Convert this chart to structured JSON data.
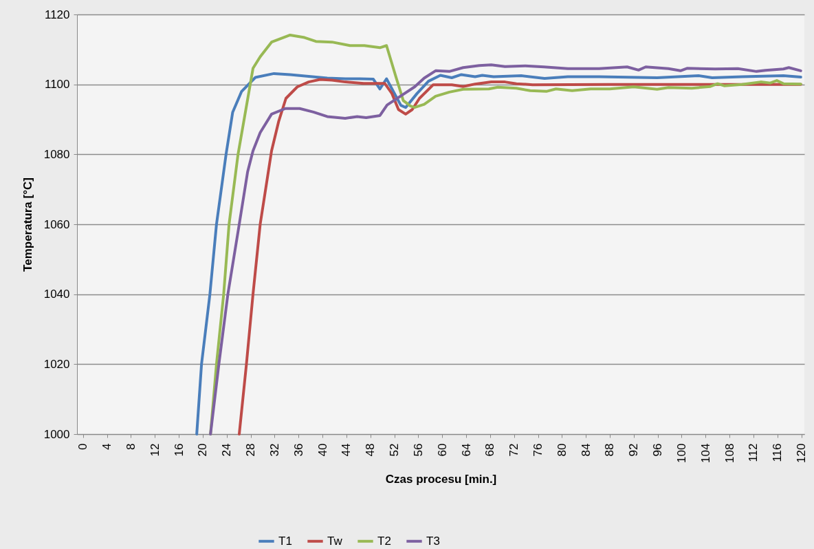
{
  "chart_data": {
    "type": "line",
    "xlabel": "Czas procesu [min.]",
    "ylabel": "Temperatura  [°C]",
    "xlim": [
      -1,
      120.5
    ],
    "ylim": [
      1000,
      1120
    ],
    "xticks": [
      0,
      4,
      8,
      12,
      16,
      20,
      24,
      28,
      32,
      36,
      40,
      44,
      48,
      52,
      56,
      60,
      64,
      68,
      72,
      76,
      80,
      84,
      88,
      92,
      96,
      100,
      104,
      108,
      112,
      116,
      120
    ],
    "yticks": [
      1000,
      1020,
      1040,
      1060,
      1080,
      1100,
      1120
    ],
    "grid": "y",
    "legend": "bottom",
    "marker": "none",
    "line_style": "solid",
    "series": [
      {
        "name": "T1",
        "color": "#4a7ebb",
        "x": [
          19,
          19.8,
          21.2,
          22.3,
          23.9,
          25,
          26.5,
          28.8,
          31.9,
          34.6,
          37.7,
          40.8,
          43.8,
          46.2,
          48.5,
          49.6,
          50.7,
          53.1,
          53.9,
          55.8,
          57.7,
          59.7,
          61.6,
          63.2,
          65.5,
          66.7,
          68.6,
          73.2,
          77.1,
          81,
          86.2,
          95.9,
          102.8,
          105.1,
          110.1,
          117,
          119.9
        ],
        "values": [
          1000,
          1020,
          1040,
          1060,
          1080,
          1092,
          1098,
          1102,
          1103.1,
          1102.8,
          1102.3,
          1101.8,
          1101.6,
          1101.6,
          1101.5,
          1098.7,
          1101.6,
          1094,
          1093.4,
          1097.4,
          1100.9,
          1102.6,
          1101.9,
          1102.8,
          1102.2,
          1102.6,
          1102.2,
          1102.5,
          1101.7,
          1102.2,
          1102.2,
          1101.9,
          1102.5,
          1101.9,
          1102.2,
          1102.5,
          1102.1
        ]
      },
      {
        "name": "Tw",
        "color": "#be4b48",
        "x": [
          26.1,
          27.3,
          28.4,
          29.6,
          31.5,
          32.7,
          33.9,
          35.8,
          37.7,
          39.6,
          41.6,
          43.8,
          46.9,
          50.4,
          51.6,
          52.7,
          53.9,
          55,
          56.2,
          58.5,
          61.6,
          63.5,
          65.5,
          68.2,
          70.5,
          72.4,
          75.1,
          87.9,
          100,
          110,
          119.9
        ],
        "values": [
          1000,
          1020,
          1040,
          1060,
          1081,
          1089.5,
          1096,
          1099.3,
          1100.7,
          1101.4,
          1101.2,
          1100.7,
          1100.3,
          1100.3,
          1097.4,
          1092.8,
          1091.5,
          1092.8,
          1096,
          1099.9,
          1099.9,
          1099.4,
          1100.1,
          1100.7,
          1100.7,
          1100.2,
          1099.9,
          1100,
          1100,
          1100,
          1100
        ]
      },
      {
        "name": "T2",
        "color": "#98b954",
        "x": [
          21.3,
          22.3,
          23.5,
          24.4,
          25.9,
          28.4,
          29.6,
          31.5,
          34.6,
          37,
          38.9,
          41.6,
          44.6,
          47,
          49.6,
          50.7,
          52.3,
          53.5,
          54.7,
          55.4,
          57,
          58.9,
          61.2,
          63.5,
          67.8,
          69.3,
          72.4,
          74.7,
          77.4,
          79,
          81.7,
          84.8,
          88,
          92,
          95.9,
          97.8,
          101.7,
          104.8,
          106,
          107.1,
          110.1,
          113.2,
          114.8,
          115.9,
          117,
          119.9
        ],
        "values": [
          1000,
          1020,
          1040,
          1060,
          1080,
          1104.6,
          1107.9,
          1112.1,
          1114.1,
          1113.4,
          1112.3,
          1112.1,
          1111.1,
          1111.1,
          1110.5,
          1111.1,
          1102,
          1095.4,
          1093.8,
          1093.4,
          1094.3,
          1096.6,
          1097.8,
          1098.6,
          1098.7,
          1099.2,
          1098.9,
          1098.2,
          1098,
          1098.7,
          1098.2,
          1098.7,
          1098.7,
          1099.3,
          1098.6,
          1099.1,
          1098.9,
          1099.4,
          1100.2,
          1099.6,
          1100,
          1100.7,
          1100.4,
          1101.1,
          1100.2,
          1100.1
        ]
      },
      {
        "name": "T3",
        "color": "#7d60a0",
        "x": [
          21.3,
          22.7,
          24.2,
          26.1,
          27.5,
          28.4,
          29.6,
          31.5,
          33.8,
          36.2,
          38.5,
          40.8,
          43.8,
          45.8,
          47.3,
          49.6,
          50.8,
          53.1,
          55.4,
          57,
          58.9,
          61.2,
          63.5,
          66.2,
          68.2,
          70.5,
          73.9,
          77,
          81,
          86.2,
          90.9,
          92.8,
          94,
          97.8,
          99.8,
          100.9,
          105.6,
          109.4,
          112.5,
          114,
          117,
          117.9,
          119.9
        ],
        "values": [
          1000,
          1020,
          1040,
          1060,
          1075,
          1081,
          1086.2,
          1091.5,
          1093.1,
          1093.1,
          1092.1,
          1090.8,
          1090.3,
          1090.8,
          1090.5,
          1091.1,
          1094.1,
          1096.7,
          1099.3,
          1101.8,
          1103.9,
          1103.7,
          1104.8,
          1105.4,
          1105.6,
          1105.1,
          1105.3,
          1105,
          1104.5,
          1104.5,
          1105,
          1104.1,
          1105,
          1104.5,
          1103.9,
          1104.6,
          1104.4,
          1104.5,
          1103.7,
          1104,
          1104.4,
          1104.8,
          1103.9
        ]
      }
    ]
  }
}
